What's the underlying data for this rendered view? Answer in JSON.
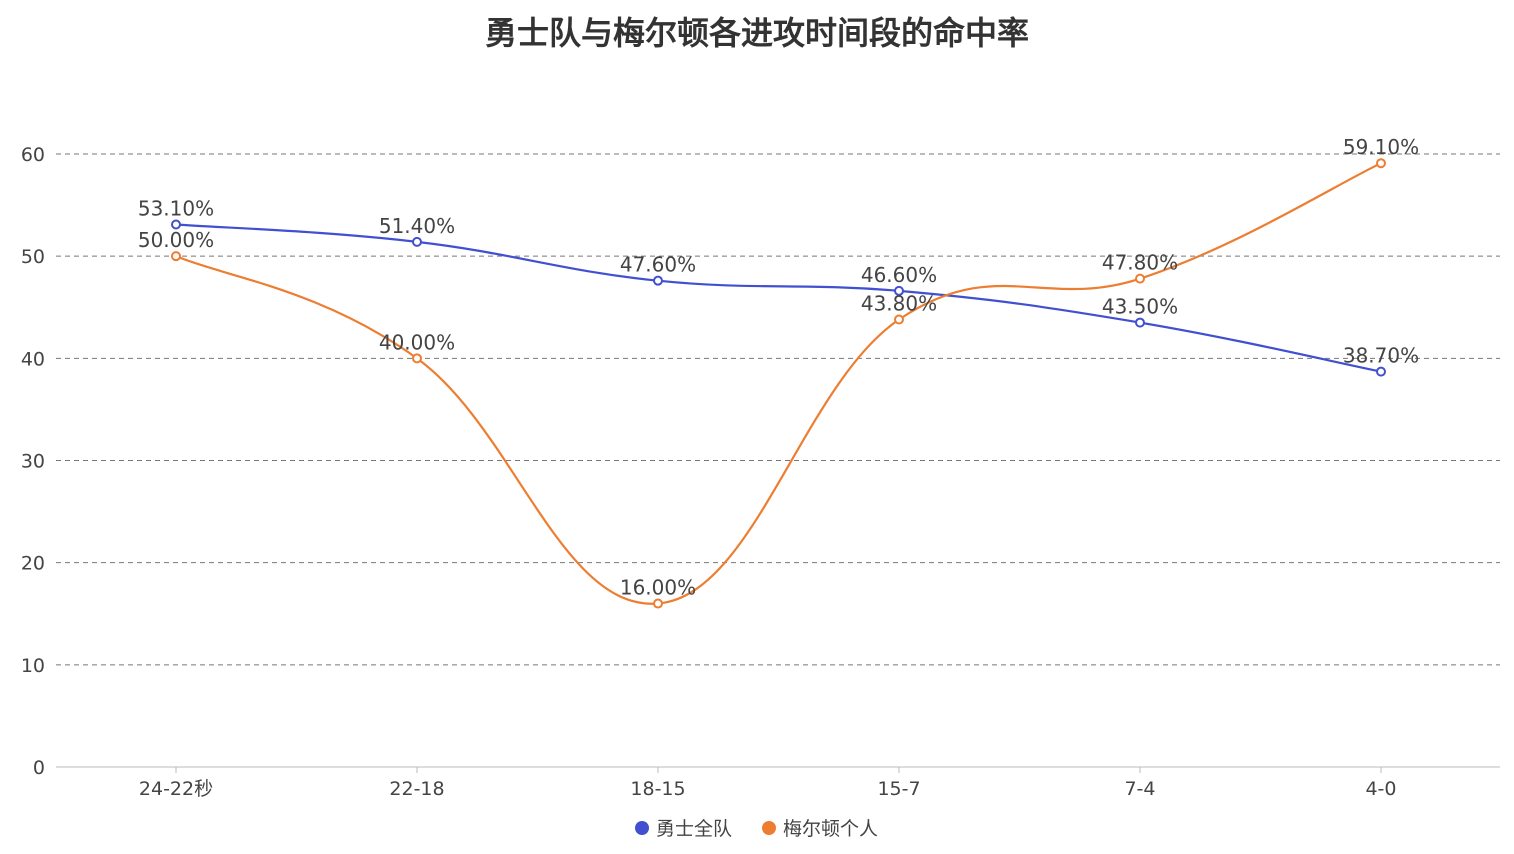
{
  "chart_data": {
    "type": "line",
    "title": "勇士队与梅尔顿各进攻时间段的命中率",
    "categories": [
      "24-22秒",
      "22-18",
      "18-15",
      "15-7",
      "7-4",
      "4-0"
    ],
    "ylim": [
      0,
      60
    ],
    "yticks": [
      0,
      10,
      20,
      30,
      40,
      50,
      60
    ],
    "grid": true,
    "legend_position": "bottom",
    "series": [
      {
        "name": "勇士全队",
        "color": "#4050d0",
        "values": [
          53.1,
          51.4,
          47.6,
          46.6,
          43.5,
          38.7
        ],
        "labels": [
          "53.10%",
          "51.40%",
          "47.60%",
          "46.60%",
          "43.50%",
          "38.70%"
        ]
      },
      {
        "name": "梅尔顿个人",
        "color": "#ed7d31",
        "values": [
          50.0,
          40.0,
          16.0,
          43.8,
          47.8,
          59.1
        ],
        "labels": [
          "50.00%",
          "40.00%",
          "16.00%",
          "43.80%",
          "47.80%",
          "59.10%"
        ]
      }
    ]
  }
}
